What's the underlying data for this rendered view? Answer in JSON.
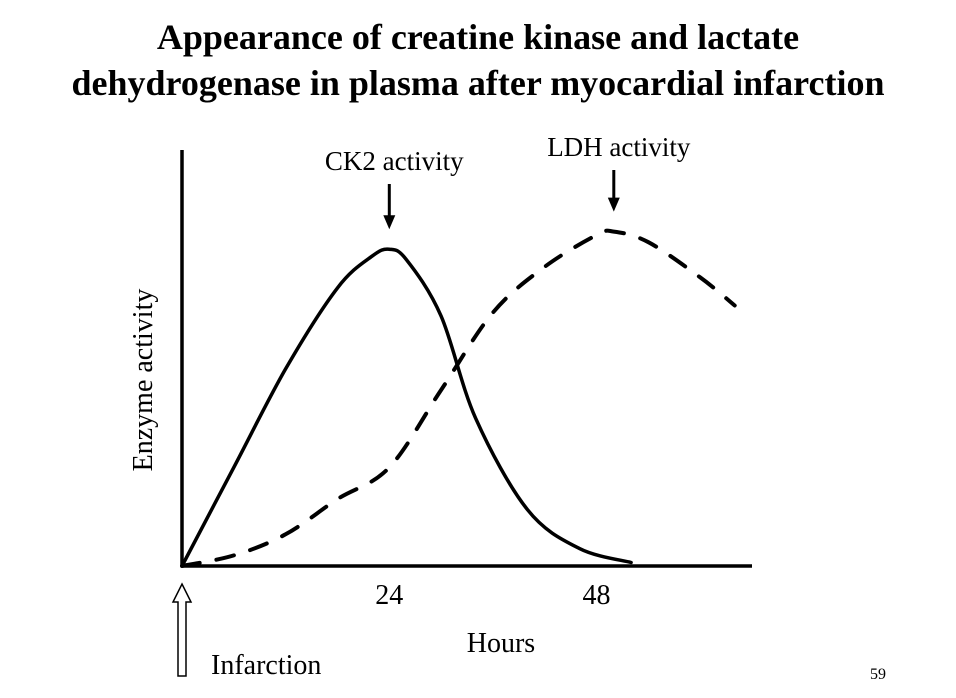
{
  "slide": {
    "title_line1": "Appearance of creatine kinase and lactate",
    "title_line2": "dehydrogenase in plasma after myocardial infarction",
    "page_number": "59"
  },
  "chart_data": {
    "type": "line",
    "xlabel": "Hours",
    "ylabel": "Enzyme activity",
    "x_ticks": [
      {
        "value": 24,
        "label": "24"
      },
      {
        "value": 48,
        "label": "48"
      }
    ],
    "xlim": [
      0,
      66
    ],
    "ylim": [
      0,
      1
    ],
    "grid": false,
    "y_axis_units": "relative (no values shown)",
    "series": [
      {
        "name": "CK2 activity",
        "style": "solid",
        "peak_hour": 24,
        "x": [
          0,
          6,
          12,
          18,
          22,
          24,
          26,
          30,
          34,
          40,
          46,
          52
        ],
        "y": [
          0,
          0.28,
          0.56,
          0.79,
          0.88,
          0.9,
          0.87,
          0.71,
          0.42,
          0.16,
          0.05,
          0.01
        ]
      },
      {
        "name": "LDH activity",
        "style": "dashed",
        "peak_hour": 50,
        "x": [
          0,
          6,
          12,
          18,
          24,
          30,
          36,
          42,
          48,
          50,
          54,
          60,
          64
        ],
        "y": [
          0,
          0.03,
          0.09,
          0.19,
          0.28,
          0.5,
          0.72,
          0.85,
          0.94,
          0.95,
          0.92,
          0.82,
          0.74
        ]
      }
    ],
    "annotations": [
      {
        "text": "CK2 activity",
        "target_series": "CK2 activity",
        "arrow": "down"
      },
      {
        "text": "LDH activity",
        "target_series": "LDH activity",
        "arrow": "down"
      },
      {
        "text": "Infarction",
        "at_x": 0,
        "arrow": "up",
        "arrow_style": "hollow"
      }
    ]
  }
}
